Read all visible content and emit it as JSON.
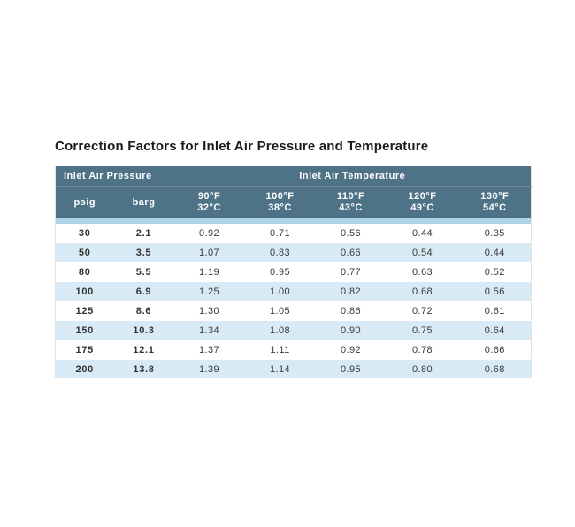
{
  "page": {
    "title": "Correction Factors for Inlet Air Pressure and Temperature"
  },
  "table": {
    "group_headers": {
      "pressure": "Inlet Air Pressure",
      "temperature": "Inlet Air Temperature"
    },
    "pressure_columns": [
      {
        "label": "psig"
      },
      {
        "label": "barg"
      }
    ],
    "temperature_columns": [
      {
        "f": "90°F",
        "c": "32°C"
      },
      {
        "f": "100°F",
        "c": "38°C"
      },
      {
        "f": "110°F",
        "c": "43°C"
      },
      {
        "f": "120°F",
        "c": "49°C"
      },
      {
        "f": "130°F",
        "c": "54°C"
      }
    ],
    "rows": [
      {
        "psig": "30",
        "barg": "2.1",
        "factors": [
          "0.92",
          "0.71",
          "0.56",
          "0.44",
          "0.35"
        ]
      },
      {
        "psig": "50",
        "barg": "3.5",
        "factors": [
          "1.07",
          "0.83",
          "0.66",
          "0.54",
          "0.44"
        ]
      },
      {
        "psig": "80",
        "barg": "5.5",
        "factors": [
          "1.19",
          "0.95",
          "0.77",
          "0.63",
          "0.52"
        ]
      },
      {
        "psig": "100",
        "barg": "6.9",
        "factors": [
          "1.25",
          "1.00",
          "0.82",
          "0.68",
          "0.56"
        ]
      },
      {
        "psig": "125",
        "barg": "8.6",
        "factors": [
          "1.30",
          "1.05",
          "0.86",
          "0.72",
          "0.61"
        ]
      },
      {
        "psig": "150",
        "barg": "10.3",
        "factors": [
          "1.34",
          "1.08",
          "0.90",
          "0.75",
          "0.64"
        ]
      },
      {
        "psig": "175",
        "barg": "12.1",
        "factors": [
          "1.37",
          "1.11",
          "0.92",
          "0.78",
          "0.66"
        ]
      },
      {
        "psig": "200",
        "barg": "13.8",
        "factors": [
          "1.39",
          "1.14",
          "0.95",
          "0.80",
          "0.68"
        ]
      }
    ],
    "colors": {
      "header_bg": "#4e7286",
      "header_text": "#ffffff",
      "band": "#aed4e9",
      "row_alt": "#d8eaf5",
      "body_text": "#3a3a3a"
    }
  }
}
